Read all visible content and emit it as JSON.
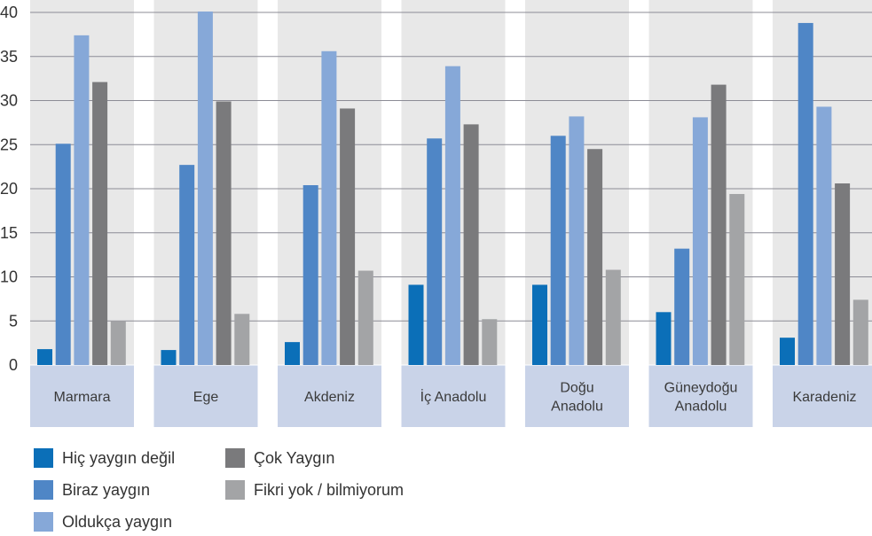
{
  "chart_data": {
    "type": "bar",
    "categories": [
      [
        "Marmara"
      ],
      [
        "Ege"
      ],
      [
        "Akdeniz"
      ],
      [
        "İç Anadolu"
      ],
      [
        "Doğu",
        "Anadolu"
      ],
      [
        "Güneydoğu",
        "Anadolu"
      ],
      [
        "Karadeniz"
      ]
    ],
    "series": [
      {
        "name": "Hiç yaygın değil",
        "color": "#0b6fb8",
        "values": [
          1.8,
          1.7,
          2.6,
          9.1,
          9.1,
          6.0,
          3.1
        ]
      },
      {
        "name": "Biraz yaygın",
        "color": "#4f86c6",
        "values": [
          25.1,
          22.7,
          20.4,
          25.7,
          26.0,
          13.2,
          38.8
        ]
      },
      {
        "name": "Oldukça yaygın",
        "color": "#86a8d8",
        "values": [
          37.4,
          40.1,
          35.6,
          33.9,
          28.2,
          28.1,
          29.3
        ]
      },
      {
        "name": "Çok Yaygın",
        "color": "#7a7a7c",
        "values": [
          32.1,
          29.9,
          29.1,
          27.3,
          24.5,
          31.8,
          20.6
        ]
      },
      {
        "name": "Fikri yok / bilmiyorum",
        "color": "#a3a4a6",
        "values": [
          5.0,
          5.8,
          10.7,
          5.2,
          10.8,
          19.4,
          7.4
        ]
      }
    ],
    "ylim": [
      0,
      40
    ],
    "yticks": [
      0,
      5,
      10,
      15,
      20,
      25,
      30,
      35,
      40
    ],
    "grid": true,
    "legend_position": "bottom-left",
    "colors": {
      "panel": "#e8e8e8",
      "category_band": "#c9d3e8",
      "gridline": "#8c8c96"
    }
  }
}
